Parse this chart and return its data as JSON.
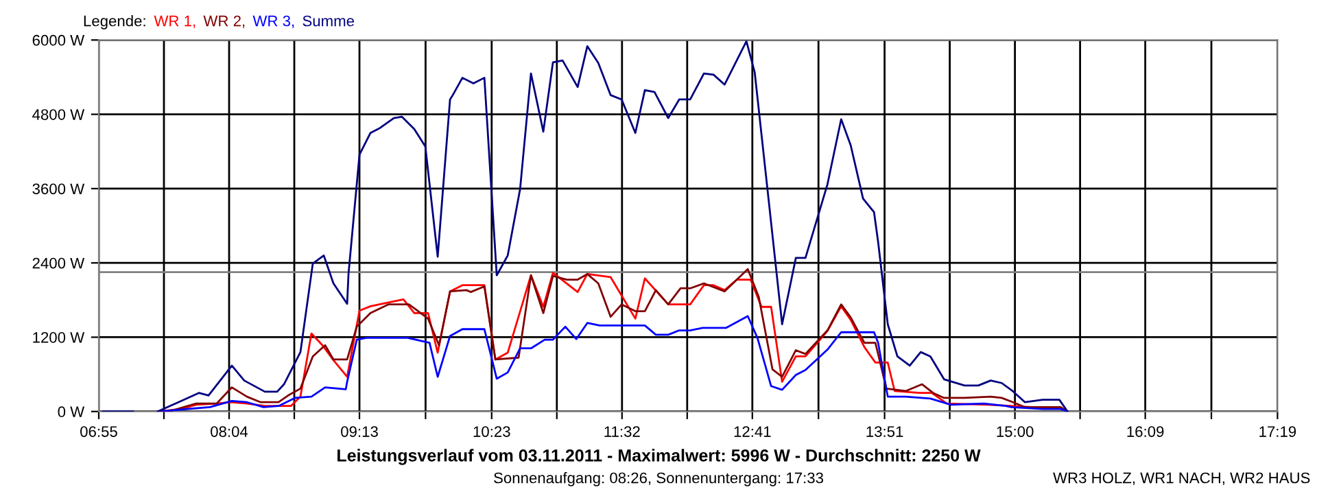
{
  "chart_data": {
    "type": "line",
    "title": "Leistungsverlauf vom 03.11.2011 - Maximalwert: 5996 W - Durchschnitt: 2250 W",
    "subtitle": "Sonnenaufgang: 08:26, Sonnenuntergang: 17:33",
    "annotations": [
      "WR3 HOLZ, WR1 NACH, WR2 HAUS"
    ],
    "legend": "top left",
    "legend_title": "Legende:",
    "grid": true,
    "marker": "none",
    "line_style": "solid",
    "xlim": [
      6.9167,
      17.3167
    ],
    "ylim": [
      0,
      6000
    ],
    "xticks": [
      {
        "value": 6.9167,
        "label": "06:55"
      },
      {
        "value": 7.4917,
        "label": null
      },
      {
        "value": 8.0667,
        "label": "08:04"
      },
      {
        "value": 8.6417,
        "label": null
      },
      {
        "value": 9.2167,
        "label": "09:13"
      },
      {
        "value": 9.8,
        "label": null
      },
      {
        "value": 10.3833,
        "label": "10:23"
      },
      {
        "value": 10.9583,
        "label": null
      },
      {
        "value": 11.5333,
        "label": "11:32"
      },
      {
        "value": 12.1083,
        "label": null
      },
      {
        "value": 12.6833,
        "label": "12:41"
      },
      {
        "value": 13.2667,
        "label": null
      },
      {
        "value": 13.85,
        "label": "13:51"
      },
      {
        "value": 14.425,
        "label": null
      },
      {
        "value": 15.0,
        "label": "15:00"
      },
      {
        "value": 15.575,
        "label": null
      },
      {
        "value": 16.15,
        "label": "16:09"
      },
      {
        "value": 16.7333,
        "label": null
      },
      {
        "value": 17.3167,
        "label": "17:19"
      }
    ],
    "yticks": [
      {
        "value": 0,
        "label": "0 W"
      },
      {
        "value": 1200,
        "label": "1200 W"
      },
      {
        "value": 2400,
        "label": "2400 W"
      },
      {
        "value": 3600,
        "label": "3600 W"
      },
      {
        "value": 4800,
        "label": "4800 W"
      },
      {
        "value": 6000,
        "label": "6000 W"
      }
    ],
    "ref_lines": [
      {
        "axis": "y",
        "value": 2250,
        "color": "#808080"
      }
    ],
    "series": [
      {
        "name": "WR 1,",
        "color": "#ff0000",
        "x": [
          7.437,
          7.643,
          7.776,
          7.958,
          8.079,
          8.224,
          8.382,
          8.612,
          8.696,
          8.793,
          8.89,
          8.987,
          9.108,
          9.217,
          9.314,
          9.471,
          9.605,
          9.701,
          9.822,
          9.907,
          10.016,
          10.125,
          10.319,
          10.416,
          10.525,
          10.73,
          10.839,
          10.924,
          11.142,
          11.227,
          11.433,
          11.651,
          11.735,
          11.941,
          12.135,
          12.256,
          12.341,
          12.438,
          12.547,
          12.668,
          12.764,
          12.849,
          12.946,
          13.067,
          13.152,
          13.346,
          13.467,
          13.551,
          13.672,
          13.769,
          13.878,
          13.939,
          14.157,
          14.266,
          14.399,
          14.762,
          14.968,
          15.246,
          15.404,
          15.464
        ],
        "values": [
          0,
          40,
          110,
          130,
          150,
          130,
          90,
          90,
          240,
          1260,
          1070,
          830,
          560,
          1630,
          1700,
          1760,
          1810,
          1590,
          1590,
          950,
          1940,
          2040,
          2040,
          840,
          950,
          2200,
          1690,
          2240,
          1930,
          2220,
          2170,
          1500,
          2150,
          1730,
          1730,
          2040,
          2040,
          1960,
          2130,
          2130,
          1690,
          1690,
          480,
          890,
          890,
          1300,
          1700,
          1480,
          1040,
          790,
          790,
          330,
          300,
          300,
          130,
          110,
          90,
          60,
          60,
          0
        ]
      },
      {
        "name": "WR 2,",
        "color": "#800000",
        "x": [
          7.534,
          7.776,
          7.958,
          8.091,
          8.224,
          8.345,
          8.503,
          8.588,
          8.696,
          8.805,
          8.914,
          8.987,
          9.108,
          9.193,
          9.314,
          9.471,
          9.653,
          9.713,
          9.822,
          9.919,
          10.016,
          10.161,
          10.198,
          10.319,
          10.416,
          10.621,
          10.73,
          10.839,
          10.924,
          11.045,
          11.142,
          11.227,
          11.324,
          11.433,
          11.53,
          11.651,
          11.735,
          11.832,
          11.941,
          12.05,
          12.135,
          12.256,
          12.438,
          12.643,
          12.74,
          12.861,
          12.946,
          13.067,
          13.152,
          13.346,
          13.467,
          13.551,
          13.672,
          13.769,
          13.866,
          14.036,
          14.181,
          14.278,
          14.375,
          14.556,
          14.786,
          14.883,
          14.968,
          15.089,
          15.404,
          15.464
        ],
        "values": [
          0,
          130,
          130,
          390,
          240,
          150,
          150,
          260,
          370,
          890,
          1070,
          840,
          840,
          1370,
          1590,
          1730,
          1730,
          1650,
          1500,
          1070,
          1940,
          1960,
          1930,
          2020,
          840,
          870,
          2200,
          1590,
          2190,
          2130,
          2130,
          2220,
          2070,
          1530,
          1730,
          1620,
          1620,
          1960,
          1730,
          1990,
          1990,
          2070,
          1940,
          2300,
          1850,
          680,
          560,
          990,
          930,
          1310,
          1730,
          1520,
          1110,
          1110,
          370,
          330,
          440,
          300,
          220,
          220,
          240,
          220,
          160,
          70,
          70,
          0
        ]
      },
      {
        "name": "WR 3,",
        "color": "#0000ff",
        "x": [
          7.437,
          7.897,
          8.091,
          8.224,
          8.37,
          8.503,
          8.648,
          8.793,
          8.914,
          9.096,
          9.108,
          9.193,
          9.278,
          9.641,
          9.835,
          9.907,
          10.016,
          10.125,
          10.319,
          10.428,
          10.525,
          10.634,
          10.73,
          10.851,
          10.924,
          11.033,
          11.13,
          11.227,
          11.336,
          11.735,
          11.832,
          11.941,
          12.038,
          12.135,
          12.244,
          12.45,
          12.643,
          12.728,
          12.849,
          12.946,
          13.067,
          13.152,
          13.346,
          13.467,
          13.757,
          13.793,
          13.878,
          14.036,
          14.254,
          14.435,
          14.726,
          14.919,
          14.968,
          15.246,
          15.404,
          15.464
        ],
        "values": [
          0,
          70,
          170,
          150,
          70,
          90,
          220,
          240,
          390,
          360,
          480,
          1160,
          1190,
          1190,
          1110,
          560,
          1220,
          1330,
          1330,
          530,
          630,
          1020,
          1020,
          1160,
          1160,
          1370,
          1170,
          1430,
          1390,
          1390,
          1240,
          1240,
          1310,
          1310,
          1350,
          1350,
          1540,
          1190,
          410,
          350,
          590,
          670,
          1000,
          1280,
          1280,
          1110,
          240,
          240,
          210,
          110,
          130,
          90,
          70,
          40,
          40,
          0
        ]
      },
      {
        "name": "Summe",
        "color": "#000080",
        "x": [
          6.953,
          7.219,
          7.33,
          7.437,
          7.8,
          7.885,
          8.091,
          8.2,
          8.382,
          8.491,
          8.551,
          8.696,
          8.805,
          8.902,
          8.987,
          9.108,
          9.12,
          9.217,
          9.314,
          9.399,
          9.52,
          9.592,
          9.701,
          9.798,
          9.907,
          10.016,
          10.04,
          10.125,
          10.222,
          10.319,
          10.428,
          10.525,
          10.634,
          10.73,
          10.839,
          10.924,
          11.009,
          11.142,
          11.227,
          11.324,
          11.433,
          11.53,
          11.651,
          11.735,
          11.82,
          11.941,
          12.038,
          12.135,
          12.256,
          12.341,
          12.438,
          12.631,
          12.704,
          12.825,
          12.946,
          13.067,
          13.152,
          13.346,
          13.467,
          13.551,
          13.66,
          13.757,
          13.793,
          13.878,
          13.963,
          14.072,
          14.169,
          14.254,
          14.375,
          14.556,
          14.677,
          14.786,
          14.883,
          14.98,
          15.089,
          15.246,
          15.392,
          15.464
        ],
        "values": [
          0,
          0,
          null,
          0,
          300,
          260,
          740,
          500,
          320,
          320,
          440,
          960,
          2390,
          2520,
          2070,
          1740,
          2220,
          4150,
          4500,
          4580,
          4740,
          4760,
          4560,
          4280,
          2500,
          5040,
          5110,
          5390,
          5300,
          5390,
          2200,
          2520,
          3590,
          5460,
          4520,
          5640,
          5670,
          5240,
          5900,
          5630,
          5110,
          5040,
          4500,
          5190,
          5160,
          4740,
          5040,
          5040,
          5460,
          5440,
          5280,
          5980,
          5480,
          3450,
          1410,
          2480,
          2480,
          3670,
          4720,
          4300,
          3440,
          3220,
          2740,
          1410,
          890,
          740,
          960,
          890,
          520,
          420,
          420,
          500,
          460,
          330,
          150,
          190,
          190,
          0
        ]
      }
    ]
  }
}
